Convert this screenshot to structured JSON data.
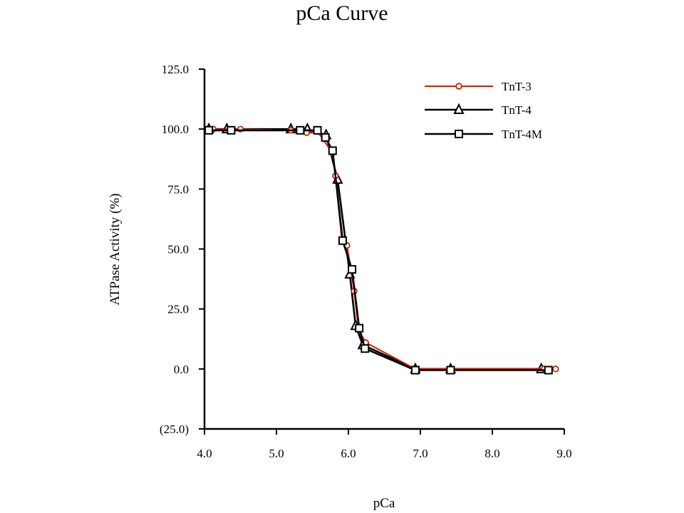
{
  "chart_data": {
    "type": "line",
    "title": "pCa Curve",
    "xlabel": "pCa",
    "ylabel": "ATPase Activity (%)",
    "xlim": [
      4.0,
      9.0
    ],
    "ylim": [
      -25.0,
      125.0
    ],
    "x_ticks": [
      "4.0",
      "5.0",
      "6.0",
      "7.0",
      "8.0",
      "9.0"
    ],
    "y_ticks": [
      "(25.0)",
      "0.0",
      "25.0",
      "50.0",
      "75.0",
      "100.0",
      "125.0"
    ],
    "legend_position": "top-right",
    "grid": false,
    "series": [
      {
        "name": "TnT-3",
        "color": "#cc2200",
        "marker": "circle",
        "points": [
          [
            4.12,
            100.0
          ],
          [
            4.5,
            100.0
          ],
          [
            5.2,
            99.5
          ],
          [
            5.42,
            98.5
          ],
          [
            5.57,
            99.0
          ],
          [
            5.78,
            90.0
          ],
          [
            5.82,
            80.5
          ],
          [
            5.91,
            53.5
          ],
          [
            5.98,
            51.5
          ],
          [
            6.08,
            32.5
          ],
          [
            6.14,
            16.5
          ],
          [
            6.24,
            11.0
          ],
          [
            6.93,
            0.0
          ],
          [
            7.42,
            0.0
          ],
          [
            8.72,
            0.0
          ],
          [
            8.88,
            0.0
          ]
        ]
      },
      {
        "name": "TnT-4",
        "color": "#000000",
        "marker": "triangle",
        "points": [
          [
            4.06,
            100.0
          ],
          [
            4.31,
            100.0
          ],
          [
            5.2,
            100.0
          ],
          [
            5.43,
            100.0
          ],
          [
            5.69,
            97.5
          ],
          [
            5.85,
            79.0
          ],
          [
            6.02,
            39.5
          ],
          [
            6.1,
            18.0
          ],
          [
            6.2,
            10.0
          ],
          [
            6.93,
            0.0
          ],
          [
            7.42,
            0.0
          ],
          [
            8.68,
            0.0
          ]
        ]
      },
      {
        "name": "TnT-4M",
        "color": "#000000",
        "marker": "square",
        "points": [
          [
            4.06,
            99.5
          ],
          [
            4.37,
            99.5
          ],
          [
            5.33,
            99.5
          ],
          [
            5.57,
            99.5
          ],
          [
            5.68,
            96.5
          ],
          [
            5.78,
            91.0
          ],
          [
            5.92,
            53.5
          ],
          [
            6.05,
            41.5
          ],
          [
            6.15,
            17.0
          ],
          [
            6.23,
            8.5
          ],
          [
            6.93,
            -0.5
          ],
          [
            7.42,
            -0.5
          ],
          [
            8.78,
            -0.5
          ]
        ]
      }
    ]
  }
}
